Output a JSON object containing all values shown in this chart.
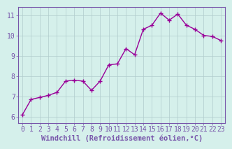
{
  "x": [
    0,
    1,
    2,
    3,
    4,
    5,
    6,
    7,
    8,
    9,
    10,
    11,
    12,
    13,
    14,
    15,
    16,
    17,
    18,
    19,
    20,
    21,
    22,
    23
  ],
  "y": [
    6.1,
    6.85,
    6.95,
    7.05,
    7.2,
    7.75,
    7.8,
    7.75,
    7.3,
    7.75,
    8.55,
    8.6,
    9.35,
    9.05,
    10.3,
    10.5,
    11.1,
    10.75,
    11.05,
    10.5,
    10.3,
    10.0,
    9.95,
    9.75
  ],
  "line_color": "#990099",
  "marker_color": "#990099",
  "bg_color": "#d5f0eb",
  "grid_color": "#b0cccc",
  "axis_color": "#7755aa",
  "spine_color": "#7755aa",
  "xlabel": "Windchill (Refroidissement éolien,°C)",
  "ylabel": "",
  "title": "",
  "ylim": [
    5.7,
    11.4
  ],
  "xlim": [
    -0.5,
    23.5
  ],
  "yticks": [
    6,
    7,
    8,
    9,
    10,
    11
  ],
  "xticks": [
    0,
    1,
    2,
    3,
    4,
    5,
    6,
    7,
    8,
    9,
    10,
    11,
    12,
    13,
    14,
    15,
    16,
    17,
    18,
    19,
    20,
    21,
    22,
    23
  ],
  "xlabel_fontsize": 7.5,
  "tick_fontsize": 7,
  "marker_size": 4,
  "line_width": 1.0
}
